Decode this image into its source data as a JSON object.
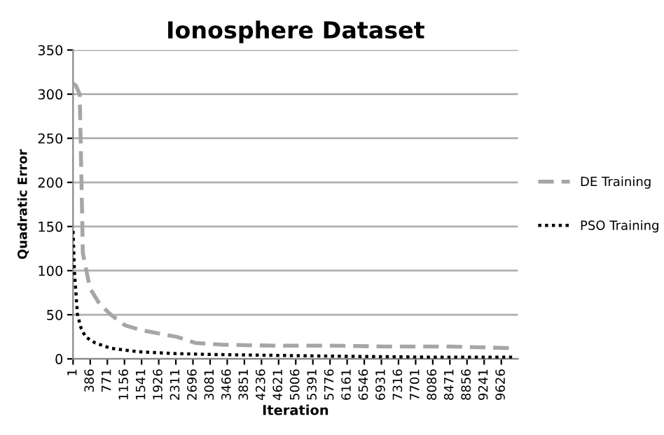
{
  "chart_data": {
    "type": "line",
    "title": "Ionosphere Dataset",
    "xlabel": "Iteration",
    "ylabel": "Quadratic Error",
    "xlim": [
      0,
      10000
    ],
    "ylim": [
      0,
      350
    ],
    "yticks": [
      0,
      50,
      100,
      150,
      200,
      250,
      300,
      350
    ],
    "xticks": [
      1,
      386,
      771,
      1156,
      1541,
      1926,
      2311,
      2696,
      3081,
      3466,
      3851,
      4236,
      4621,
      5006,
      5391,
      5776,
      6161,
      6546,
      6931,
      7316,
      7701,
      8086,
      8471,
      8856,
      9241,
      9626
    ],
    "grid": "y",
    "legend": "right",
    "marker": "none",
    "series": [
      {
        "name": "DE Training",
        "color": "#a6a6a6",
        "line_style": "dashed",
        "x": [
          1,
          60,
          150,
          200,
          220,
          300,
          380,
          600,
          850,
          1170,
          1500,
          1800,
          2330,
          2750,
          3380,
          4500,
          5776,
          7000,
          8500,
          9241,
          9900
        ],
        "values": [
          312,
          310,
          300,
          175,
          120,
          100,
          80,
          62,
          50,
          38,
          33,
          30,
          25,
          18,
          16,
          15,
          15,
          14,
          14,
          13,
          12
        ]
      },
      {
        "name": "PSO Training",
        "color": "#000000",
        "line_style": "dotted",
        "x": [
          1,
          30,
          100,
          180,
          280,
          500,
          850,
          1480,
          2300,
          3060,
          4500,
          6000,
          8000,
          9900
        ],
        "values": [
          145,
          100,
          50,
          35,
          25,
          18,
          12,
          8,
          6,
          5,
          4,
          3,
          2,
          2
        ]
      }
    ]
  }
}
